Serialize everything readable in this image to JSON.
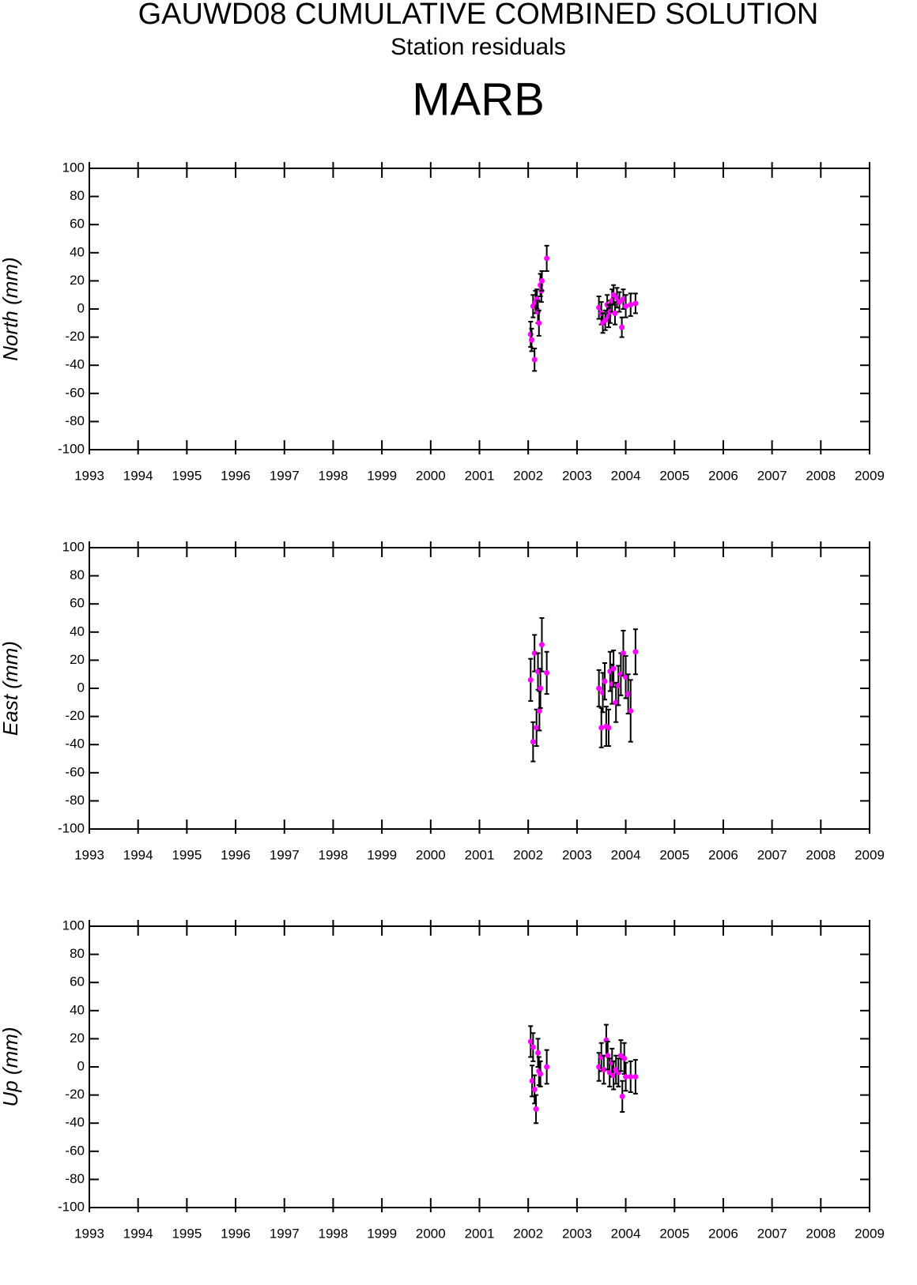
{
  "header": {
    "title": "GAUWD08 CUMULATIVE COMBINED SOLUTION",
    "subtitle": "Station residuals",
    "station": "MARB"
  },
  "chart_data": [
    {
      "type": "scatter",
      "ylabel": "North (mm)",
      "color": "#ff00ff",
      "error_color": "#000000",
      "x": [
        2002.05,
        2002.07,
        2002.1,
        2002.13,
        2002.15,
        2002.18,
        2002.2,
        2002.22,
        2002.25,
        2002.27,
        2002.28,
        2002.38,
        2003.45,
        2003.5,
        2003.53,
        2003.58,
        2003.62,
        2003.65,
        2003.68,
        2003.72,
        2003.75,
        2003.78,
        2003.82,
        2003.87,
        2003.92,
        2003.95,
        2004.0,
        2004.1,
        2004.2
      ],
      "values": [
        -18,
        -22,
        2,
        -36,
        5,
        7,
        -2,
        -10,
        17,
        13,
        20,
        36,
        1,
        -3,
        -10,
        -8,
        3,
        -5,
        -2,
        6,
        10,
        -3,
        8,
        5,
        -13,
        7,
        2,
        3,
        4
      ],
      "errors": [
        9,
        8,
        8,
        8,
        8,
        7,
        8,
        9,
        8,
        8,
        7,
        9,
        8,
        8,
        7,
        7,
        7,
        8,
        8,
        8,
        7,
        8,
        7,
        7,
        7,
        7,
        8,
        8,
        7
      ],
      "xlim": [
        1993,
        2009
      ],
      "ylim": [
        -100,
        100
      ],
      "xticks": [
        1993,
        1994,
        1995,
        1996,
        1997,
        1998,
        1999,
        2000,
        2001,
        2002,
        2003,
        2004,
        2005,
        2006,
        2007,
        2008,
        2009
      ],
      "yticks": [
        -100,
        -80,
        -60,
        -40,
        -20,
        0,
        20,
        40,
        60,
        80,
        100
      ]
    },
    {
      "type": "scatter",
      "ylabel": "East (mm)",
      "color": "#ff00ff",
      "error_color": "#000000",
      "x": [
        2002.05,
        2002.1,
        2002.13,
        2002.17,
        2002.2,
        2002.23,
        2002.25,
        2002.28,
        2002.38,
        2003.45,
        2003.5,
        2003.53,
        2003.57,
        2003.6,
        2003.65,
        2003.68,
        2003.72,
        2003.75,
        2003.8,
        2003.85,
        2003.9,
        2003.95,
        2004.0,
        2004.05,
        2004.1,
        2004.2
      ],
      "values": [
        6,
        -38,
        25,
        -28,
        12,
        -16,
        0,
        31,
        11,
        0,
        -28,
        -3,
        5,
        -27,
        -28,
        12,
        3,
        14,
        -10,
        2,
        10,
        25,
        8,
        -4,
        -16,
        26
      ],
      "errors": [
        15,
        14,
        13,
        13,
        13,
        14,
        14,
        19,
        15,
        13,
        14,
        14,
        13,
        14,
        13,
        14,
        14,
        13,
        14,
        14,
        15,
        16,
        15,
        14,
        22,
        16
      ],
      "xlim": [
        1993,
        2009
      ],
      "ylim": [
        -100,
        100
      ],
      "xticks": [
        1993,
        1994,
        1995,
        1996,
        1997,
        1998,
        1999,
        2000,
        2001,
        2002,
        2003,
        2004,
        2005,
        2006,
        2007,
        2008,
        2009
      ],
      "yticks": [
        -100,
        -80,
        -60,
        -40,
        -20,
        0,
        20,
        40,
        60,
        80,
        100
      ]
    },
    {
      "type": "scatter",
      "ylabel": "Up (mm)",
      "color": "#ff00ff",
      "error_color": "#000000",
      "x": [
        2002.05,
        2002.08,
        2002.1,
        2002.13,
        2002.16,
        2002.2,
        2002.22,
        2002.25,
        2002.38,
        2003.45,
        2003.5,
        2003.55,
        2003.6,
        2003.63,
        2003.67,
        2003.72,
        2003.75,
        2003.8,
        2003.85,
        2003.9,
        2003.93,
        2003.97,
        2004.0,
        2004.1,
        2004.2
      ],
      "values": [
        18,
        -10,
        14,
        -16,
        -30,
        10,
        -3,
        -5,
        0,
        0,
        7,
        -2,
        19,
        8,
        -4,
        3,
        -6,
        -2,
        -4,
        8,
        -21,
        6,
        -7,
        -7,
        -7
      ],
      "errors": [
        11,
        11,
        10,
        10,
        10,
        10,
        10,
        9,
        12,
        10,
        10,
        10,
        11,
        10,
        10,
        10,
        10,
        10,
        10,
        11,
        11,
        11,
        10,
        11,
        12
      ],
      "xlim": [
        1993,
        2009
      ],
      "ylim": [
        -100,
        100
      ],
      "xticks": [
        1993,
        1994,
        1995,
        1996,
        1997,
        1998,
        1999,
        2000,
        2001,
        2002,
        2003,
        2004,
        2005,
        2006,
        2007,
        2008,
        2009
      ],
      "yticks": [
        -100,
        -80,
        -60,
        -40,
        -20,
        0,
        20,
        40,
        60,
        80,
        100
      ]
    }
  ]
}
